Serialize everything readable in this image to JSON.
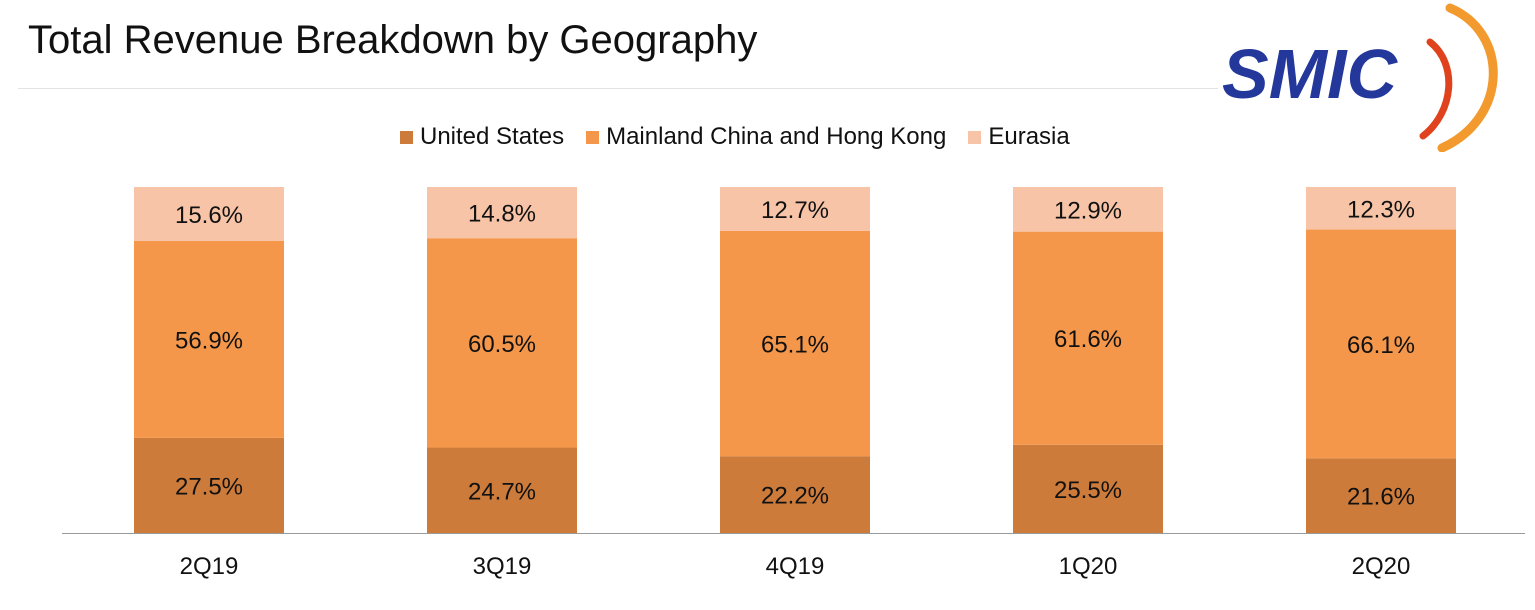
{
  "header": {
    "title": "Total Revenue Breakdown by Geography"
  },
  "logo": {
    "text": "SMIC",
    "icon": "smic-swoosh-logo",
    "text_color": "#24389b",
    "swoosh_colors": [
      "#f29a2e",
      "#e0421d"
    ]
  },
  "chart_data": {
    "type": "bar",
    "stacked": true,
    "categories": [
      "2Q19",
      "3Q19",
      "4Q19",
      "1Q20",
      "2Q20"
    ],
    "series": [
      {
        "name": "United States",
        "values": [
          27.5,
          24.7,
          22.2,
          25.5,
          21.6
        ],
        "labels": [
          "27.5%",
          "24.7%",
          "22.2%",
          "25.5%",
          "21.6%"
        ],
        "color": "#cd7b3a"
      },
      {
        "name": "Mainland China and Hong Kong",
        "values": [
          56.9,
          60.5,
          65.1,
          61.6,
          66.1
        ],
        "labels": [
          "56.9%",
          "60.5%",
          "65.1%",
          "61.6%",
          "66.1%"
        ],
        "color": "#f5974a"
      },
      {
        "name": "Eurasia",
        "values": [
          15.6,
          14.8,
          12.7,
          12.9,
          12.3
        ],
        "labels": [
          "15.6%",
          "14.8%",
          "12.7%",
          "12.9%",
          "12.3%"
        ],
        "color": "#f8c4a7"
      }
    ],
    "ylim": [
      0,
      100
    ],
    "legend": "top",
    "grid": false
  }
}
